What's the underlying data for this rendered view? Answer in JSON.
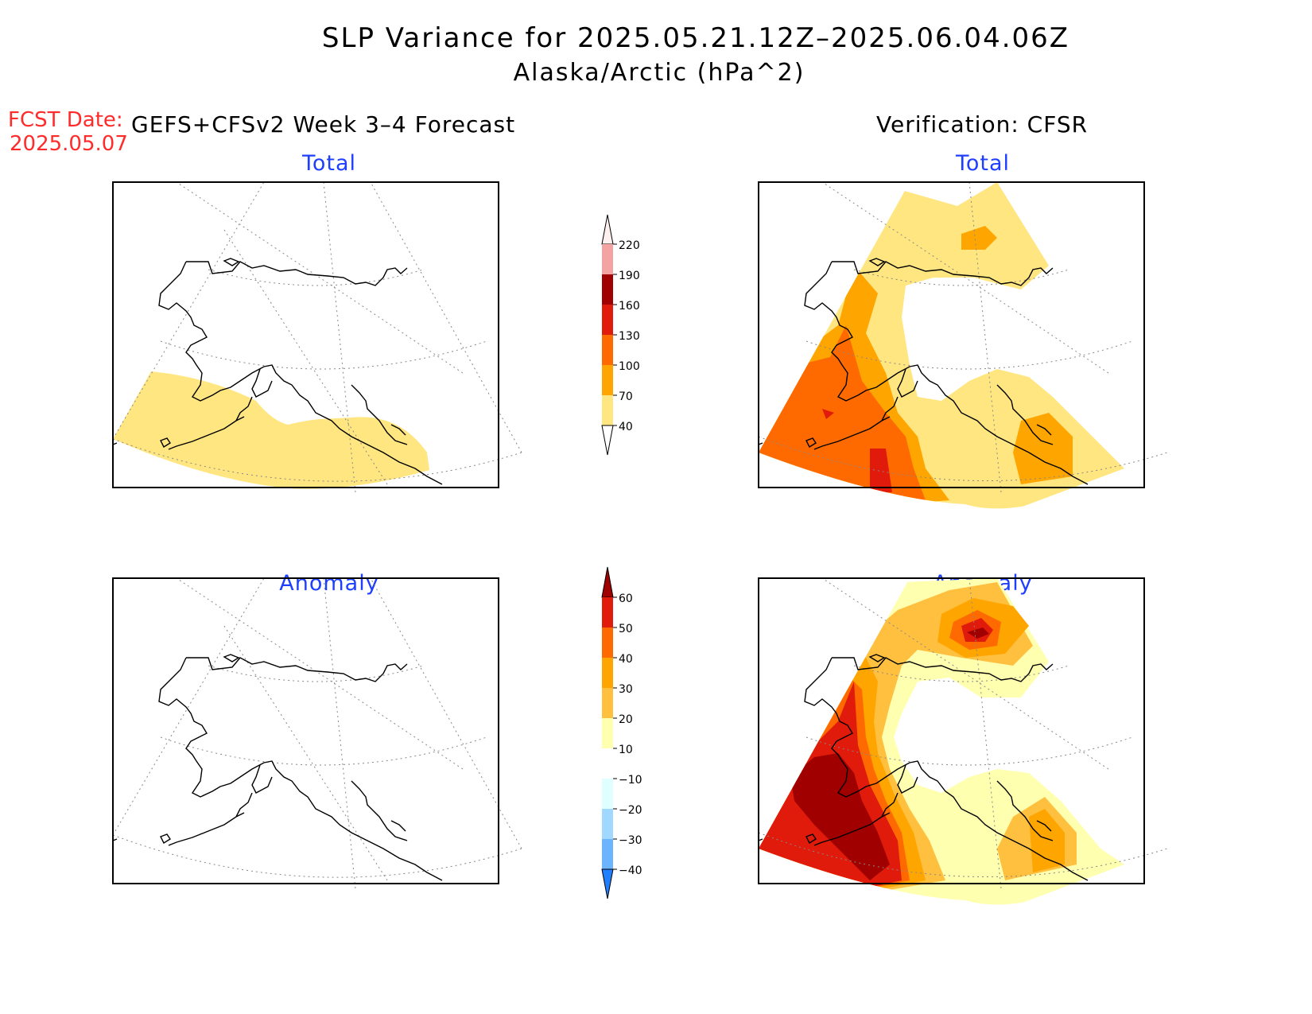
{
  "title": {
    "line1": "SLP Variance for 2025.05.21.12Z–2025.06.04.06Z",
    "line2": "Alaska/Arctic (hPa^2)"
  },
  "forecast_date": {
    "label": "FCST Date:",
    "value": "2025.05.07"
  },
  "columns": {
    "left": "GEFS+CFSv2 Week 3–4 Forecast",
    "right": "Verification: CFSR"
  },
  "panels": [
    {
      "id": "forecast-total",
      "title": "Total"
    },
    {
      "id": "verification-total",
      "title": "Total"
    },
    {
      "id": "forecast-anomaly",
      "title": "Anomaly"
    },
    {
      "id": "verification-anomaly",
      "title": "Anomaly"
    }
  ],
  "colorbars": {
    "total": {
      "labels": [
        "220",
        "190",
        "160",
        "130",
        "100",
        "70",
        "40"
      ],
      "colors": [
        "#fff0f0",
        "#f4a3a3",
        "#a00000",
        "#e01b0b",
        "#ff6a00",
        "#ffa500",
        "#ffe680"
      ]
    },
    "anomaly": {
      "labels": [
        "60",
        "50",
        "40",
        "30",
        "20",
        "10",
        "−10",
        "−20",
        "−30",
        "−40"
      ],
      "colors": [
        "#a00000",
        "#e01b0b",
        "#ff6a00",
        "#ffa500",
        "#ffc040",
        "#ffffb0",
        "#ffffff",
        "#e0ffff",
        "#a0d8ff",
        "#6cb4ff",
        "#1f7fff"
      ]
    }
  },
  "map_colors": {
    "fill_40_70": "#ffe680",
    "fill_70_100": "#ffa500",
    "fill_100_130": "#ff6a00",
    "fill_130_160": "#e01b0b",
    "fill_160_190": "#a00000",
    "anom_10_20": "#ffffb0",
    "anom_20_30": "#ffc040",
    "anom_30_40": "#ffa500",
    "anom_40_50": "#ff6a00",
    "anom_50_60": "#e01b0b",
    "anom_60_plus": "#a00000"
  }
}
